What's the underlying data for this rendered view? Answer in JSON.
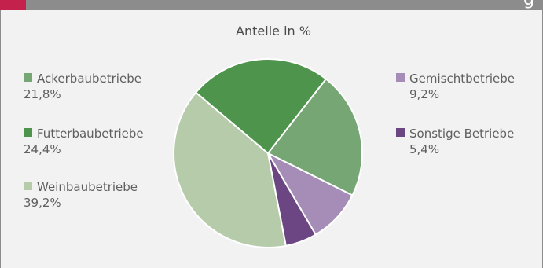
{
  "header": {
    "title_fragment": "g",
    "accent_color": "#c4224d",
    "bar_color": "#8c8c8c"
  },
  "chart_data": {
    "type": "pie",
    "title": "Anteile in %",
    "slices": [
      {
        "label": "Ackerbaubetriebe",
        "value": 21.8,
        "value_text": "21,8%",
        "color": "#75a673"
      },
      {
        "label": "Gemischtbetriebe",
        "value": 9.2,
        "value_text": "9,2%",
        "color": "#a68db7"
      },
      {
        "label": "Sonstige Betriebe",
        "value": 5.4,
        "value_text": "5,4%",
        "color": "#6c4583"
      },
      {
        "label": "Weinbaubetriebe",
        "value": 39.2,
        "value_text": "39,2%",
        "color": "#b5cba9"
      },
      {
        "label": "Futterbaubetriebe",
        "value": 24.4,
        "value_text": "24,4%",
        "color": "#4f944c"
      }
    ],
    "legend": [
      {
        "slice": 0,
        "side": "left"
      },
      {
        "slice": 4,
        "side": "left"
      },
      {
        "slice": 3,
        "side": "left"
      },
      {
        "slice": 1,
        "side": "right"
      },
      {
        "slice": 2,
        "side": "right"
      }
    ]
  }
}
